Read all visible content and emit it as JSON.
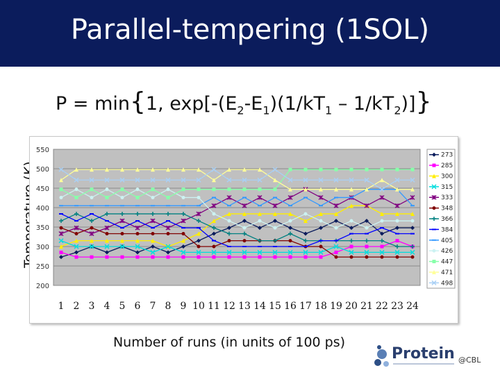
{
  "title": "Parallel-tempering (1SOL)",
  "formula": {
    "prefix": "P = min",
    "open_brace": "{",
    "part1": "1, exp[-(E",
    "sub1": "2",
    "part2": "-E",
    "sub2": "1",
    "part3": ")(1/kT",
    "sub3": "1",
    "part4": " – 1/kT",
    "sub4": "2",
    "part5": ")]",
    "close_brace": "}"
  },
  "logo": {
    "word": "Protein",
    "sub": "@CBL"
  },
  "chart_data": {
    "type": "line",
    "xlabel": "Number of runs (in units of 100 ps)",
    "ylabel": "Temperature (K)",
    "x": [
      1,
      2,
      3,
      4,
      5,
      6,
      7,
      8,
      9,
      10,
      11,
      12,
      13,
      14,
      15,
      16,
      17,
      18,
      19,
      20,
      21,
      22,
      23,
      24
    ],
    "ylim": [
      200,
      550
    ],
    "yticks": [
      200,
      250,
      300,
      350,
      400,
      450,
      500,
      550
    ],
    "grid": true,
    "legend": "right",
    "series": [
      {
        "name": "273",
        "color": "#0b1c5c",
        "marker": "diamond",
        "values": [
          273,
          285,
          300,
          285,
          300,
          285,
          300,
          285,
          300,
          315,
          333,
          348,
          366,
          348,
          366,
          348,
          333,
          348,
          366,
          348,
          366,
          333,
          348,
          348
        ]
      },
      {
        "name": "285",
        "color": "#ff00ff",
        "marker": "square",
        "values": [
          285,
          273,
          273,
          273,
          273,
          273,
          273,
          273,
          273,
          273,
          273,
          273,
          273,
          273,
          273,
          273,
          273,
          273,
          285,
          300,
          300,
          300,
          315,
          300
        ]
      },
      {
        "name": "300",
        "color": "#ffee00",
        "marker": "triangle",
        "values": [
          300,
          315,
          315,
          315,
          315,
          315,
          315,
          300,
          315,
          333,
          366,
          384,
          384,
          384,
          384,
          384,
          366,
          384,
          384,
          405,
          405,
          384,
          384,
          384
        ]
      },
      {
        "name": "315",
        "color": "#00dddd",
        "marker": "x",
        "values": [
          315,
          300,
          300,
          300,
          300,
          300,
          285,
          300,
          285,
          285,
          285,
          285,
          285,
          285,
          285,
          285,
          285,
          285,
          300,
          285,
          285,
          285,
          285,
          285
        ]
      },
      {
        "name": "333",
        "color": "#800080",
        "marker": "star",
        "values": [
          333,
          348,
          333,
          348,
          366,
          348,
          366,
          348,
          366,
          384,
          405,
          426,
          405,
          426,
          405,
          426,
          447,
          426,
          405,
          426,
          405,
          426,
          405,
          426
        ]
      },
      {
        "name": "348",
        "color": "#800000",
        "marker": "circle",
        "values": [
          348,
          333,
          348,
          333,
          333,
          333,
          333,
          333,
          333,
          300,
          300,
          315,
          315,
          315,
          315,
          315,
          300,
          300,
          273,
          273,
          273,
          273,
          273,
          273
        ]
      },
      {
        "name": "366",
        "color": "#008080",
        "marker": "plus",
        "values": [
          366,
          384,
          366,
          384,
          384,
          384,
          384,
          384,
          384,
          366,
          348,
          333,
          333,
          315,
          315,
          333,
          315,
          315,
          315,
          315,
          315,
          315,
          300,
          300
        ]
      },
      {
        "name": "384",
        "color": "#0000ff",
        "marker": "dash",
        "values": [
          384,
          366,
          384,
          366,
          348,
          366,
          348,
          366,
          348,
          348,
          315,
          300,
          300,
          300,
          300,
          300,
          300,
          315,
          315,
          333,
          333,
          348,
          333,
          333
        ]
      },
      {
        "name": "405",
        "color": "#3399ff",
        "marker": "dash",
        "values": [
          405,
          405,
          405,
          405,
          405,
          405,
          405,
          405,
          405,
          405,
          426,
          405,
          426,
          405,
          426,
          405,
          426,
          405,
          426,
          426,
          447,
          447,
          447,
          405
        ]
      },
      {
        "name": "426",
        "color": "#ccf2f2",
        "marker": "circle",
        "values": [
          426,
          447,
          426,
          447,
          426,
          447,
          426,
          447,
          426,
          426,
          384,
          366,
          348,
          366,
          348,
          366,
          384,
          366,
          348,
          366,
          348,
          366,
          366,
          366
        ]
      },
      {
        "name": "447",
        "color": "#88ffaa",
        "marker": "square",
        "values": [
          447,
          426,
          447,
          426,
          447,
          426,
          447,
          426,
          447,
          447,
          447,
          447,
          447,
          447,
          447,
          498,
          498,
          498,
          498,
          498,
          498,
          498,
          498,
          498
        ]
      },
      {
        "name": "471",
        "color": "#ffff99",
        "marker": "triangle",
        "values": [
          471,
          498,
          498,
          498,
          498,
          498,
          498,
          498,
          498,
          498,
          471,
          498,
          498,
          498,
          471,
          447,
          447,
          447,
          447,
          447,
          447,
          471,
          447,
          447
        ]
      },
      {
        "name": "498",
        "color": "#a9d0f5",
        "marker": "x",
        "values": [
          498,
          471,
          471,
          471,
          471,
          471,
          471,
          471,
          471,
          471,
          498,
          471,
          471,
          471,
          498,
          471,
          471,
          471,
          471,
          471,
          471,
          447,
          471,
          471
        ]
      }
    ]
  }
}
